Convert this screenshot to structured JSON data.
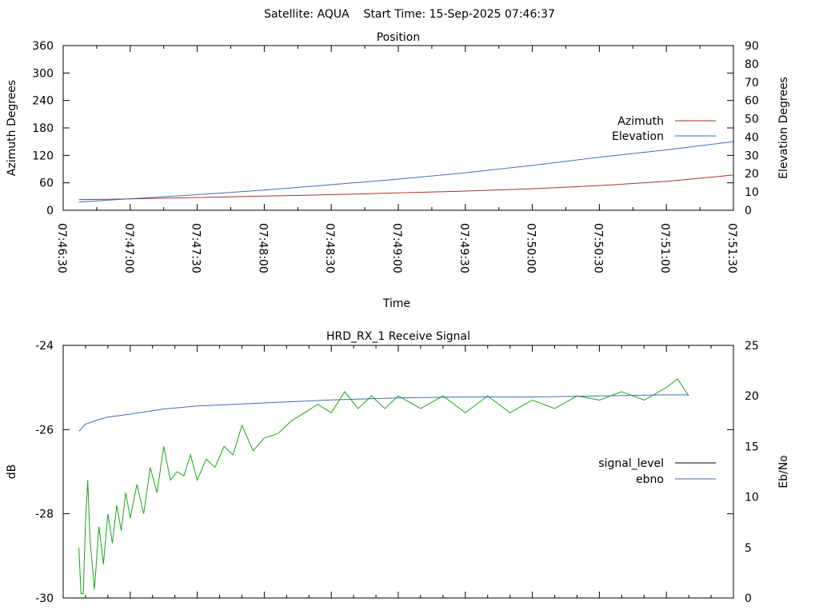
{
  "header": {
    "text": "Satellite: AQUA    Start Time: 15-Sep-2025 07:46:37"
  },
  "colors": {
    "azimuth": "#a83232",
    "elevation": "#3f6fb5",
    "signal_level": "#000000",
    "signal_trace": "#1aa31a",
    "ebno": "#3f6fb5"
  },
  "chart_data": [
    {
      "type": "line",
      "title": "Position",
      "xlabel": "Time",
      "ylabel": "Azimuth Degrees",
      "y2label": "Elevation Degrees",
      "xticks": [
        "07:46:30",
        "07:47:00",
        "07:47:30",
        "07:48:00",
        "07:48:30",
        "07:49:00",
        "07:49:30",
        "07:50:00",
        "07:50:30",
        "07:51:00",
        "07:51:30"
      ],
      "xlim": [
        "07:46:30",
        "07:51:30"
      ],
      "ylim": [
        0,
        360
      ],
      "y2lim": [
        0,
        90
      ],
      "yticks": [
        0,
        60,
        120,
        180,
        240,
        300,
        360
      ],
      "y2ticks": [
        0,
        10,
        20,
        30,
        40,
        50,
        60,
        70,
        80,
        90
      ],
      "grid": false,
      "legend_position": "right",
      "series": [
        {
          "name": "Azimuth",
          "axis": "left",
          "x": [
            "07:46:37",
            "07:47:00",
            "07:47:30",
            "07:48:00",
            "07:48:30",
            "07:49:00",
            "07:49:30",
            "07:50:00",
            "07:50:30",
            "07:51:00",
            "07:51:30"
          ],
          "values": [
            23,
            25,
            28,
            31,
            34,
            38,
            42,
            47,
            54,
            63,
            77
          ]
        },
        {
          "name": "Elevation",
          "axis": "right",
          "x": [
            "07:46:37",
            "07:47:00",
            "07:47:30",
            "07:48:00",
            "07:48:30",
            "07:49:00",
            "07:49:30",
            "07:50:00",
            "07:50:30",
            "07:51:00",
            "07:51:30"
          ],
          "values": [
            4.5,
            6.3,
            8.5,
            11,
            14,
            17,
            20.5,
            24.5,
            29,
            33,
            37.5
          ]
        }
      ]
    },
    {
      "type": "line",
      "title": "HRD_RX_1 Receive Signal",
      "xlabel": "",
      "ylabel": "dB",
      "y2label": "Eb/No",
      "xlim": [
        "07:46:30",
        "07:51:30"
      ],
      "ylim": [
        -30,
        -24
      ],
      "y2lim": [
        0,
        25
      ],
      "yticks": [
        -30,
        -28,
        -26,
        -24
      ],
      "y2ticks": [
        0,
        5,
        10,
        15,
        20,
        25
      ],
      "grid": false,
      "legend_position": "right",
      "series": [
        {
          "name": "signal_level",
          "axis": "left",
          "x": [
            "07:46:37",
            "07:46:38",
            "07:46:39",
            "07:46:40",
            "07:46:41",
            "07:46:42",
            "07:46:44",
            "07:46:46",
            "07:46:48",
            "07:46:50",
            "07:46:52",
            "07:46:54",
            "07:46:56",
            "07:46:58",
            "07:47:00",
            "07:47:03",
            "07:47:06",
            "07:47:09",
            "07:47:12",
            "07:47:15",
            "07:47:18",
            "07:47:21",
            "07:47:24",
            "07:47:27",
            "07:47:30",
            "07:47:34",
            "07:47:38",
            "07:47:42",
            "07:47:46",
            "07:47:50",
            "07:47:55",
            "07:48:00",
            "07:48:06",
            "07:48:12",
            "07:48:18",
            "07:48:24",
            "07:48:30",
            "07:48:36",
            "07:48:42",
            "07:48:48",
            "07:48:54",
            "07:49:00",
            "07:49:10",
            "07:49:20",
            "07:49:30",
            "07:49:40",
            "07:49:50",
            "07:50:00",
            "07:50:10",
            "07:50:20",
            "07:50:30",
            "07:50:40",
            "07:50:50",
            "07:51:00",
            "07:51:05",
            "07:51:10"
          ],
          "values": [
            -28.8,
            -29.9,
            -29.9,
            -28.2,
            -27.2,
            -28.6,
            -29.8,
            -28.3,
            -29.2,
            -28.0,
            -28.7,
            -27.8,
            -28.4,
            -27.5,
            -28.1,
            -27.3,
            -28.0,
            -26.9,
            -27.5,
            -26.4,
            -27.2,
            -27.0,
            -27.1,
            -26.6,
            -27.2,
            -26.7,
            -26.9,
            -26.4,
            -26.6,
            -25.9,
            -26.5,
            -26.2,
            -26.1,
            -25.8,
            -25.6,
            -25.4,
            -25.6,
            -25.1,
            -25.5,
            -25.2,
            -25.5,
            -25.2,
            -25.5,
            -25.2,
            -25.6,
            -25.2,
            -25.6,
            -25.3,
            -25.5,
            -25.2,
            -25.3,
            -25.1,
            -25.3,
            -25.0,
            -24.8,
            -25.2
          ]
        },
        {
          "name": "ebno",
          "axis": "right",
          "x": [
            "07:46:37",
            "07:46:40",
            "07:46:45",
            "07:46:50",
            "07:47:00",
            "07:47:15",
            "07:47:30",
            "07:48:00",
            "07:48:30",
            "07:49:00",
            "07:49:30",
            "07:50:00",
            "07:50:30",
            "07:51:00",
            "07:51:10"
          ],
          "values": [
            16.5,
            17.2,
            17.6,
            17.9,
            18.2,
            18.7,
            19.0,
            19.3,
            19.6,
            19.8,
            19.9,
            19.9,
            20.0,
            20.1,
            20.1
          ]
        }
      ]
    }
  ]
}
